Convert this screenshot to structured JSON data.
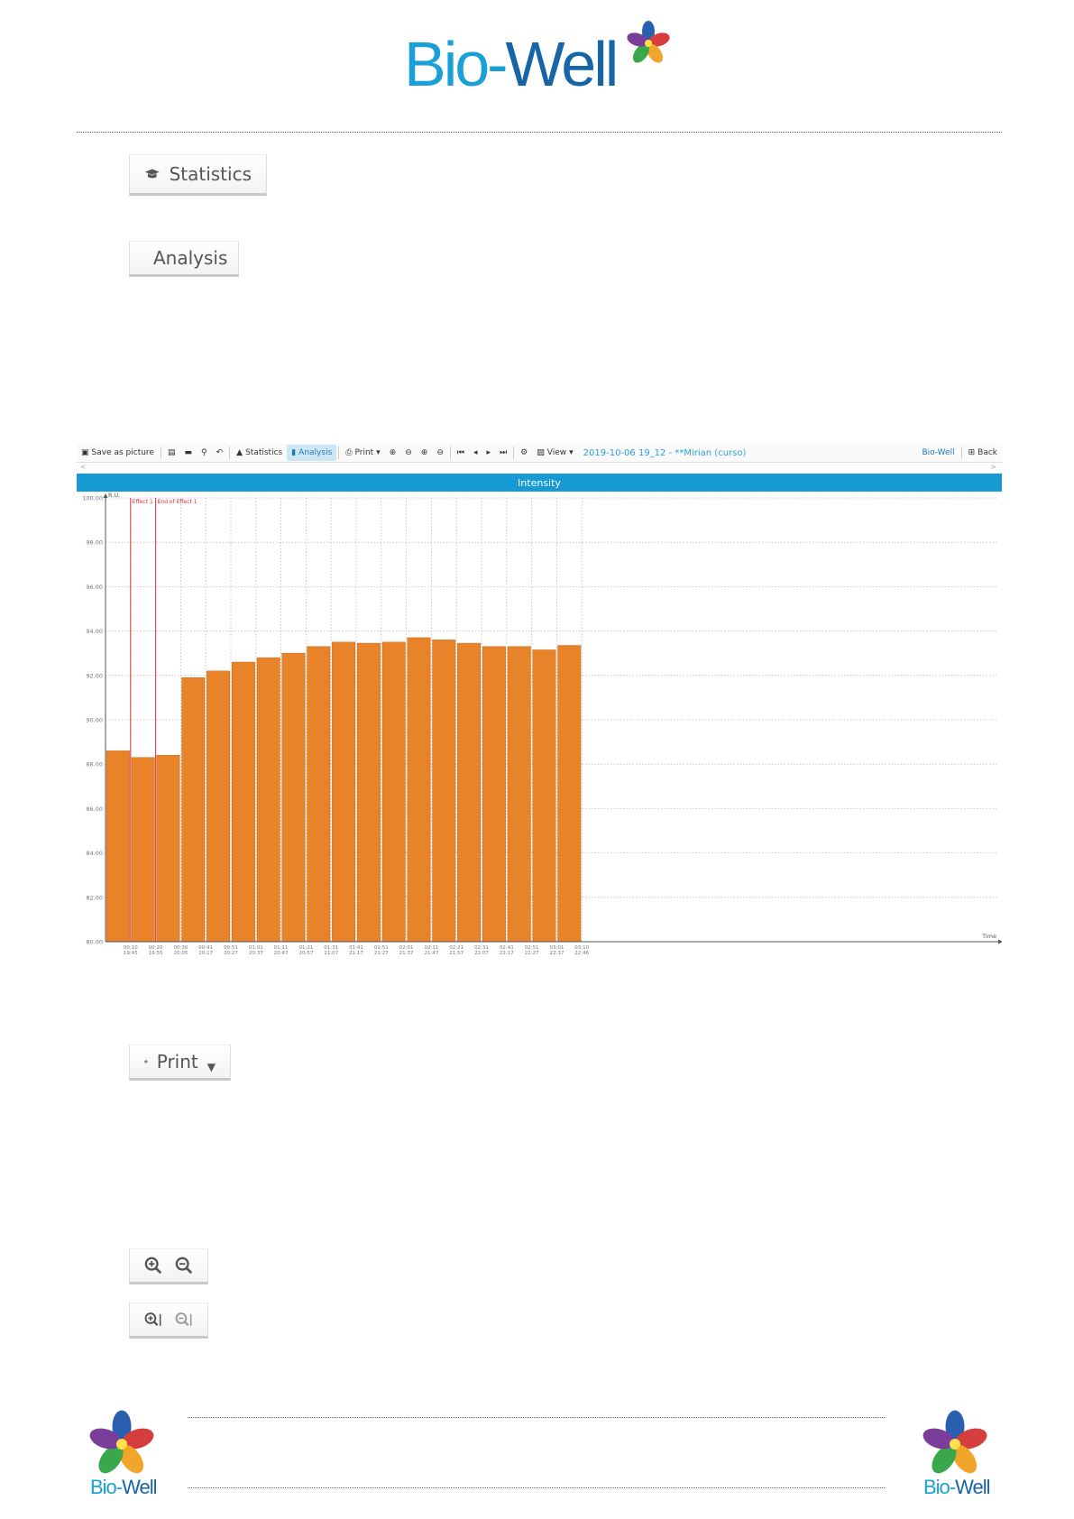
{
  "header": {
    "logo_bio": "Bio-",
    "logo_well": "Well"
  },
  "snippets": {
    "statistics_label": "Statistics",
    "analysis_label": "Analysis",
    "print_label": "Print"
  },
  "toolbar": {
    "save_as_picture": "Save as picture",
    "statistics": "Statistics",
    "analysis": "Analysis",
    "print": "Print",
    "view": "View",
    "session_title": "2019-10-06 19_12 - **Mirian (curso)",
    "brand": "Bio-Well",
    "back": "Back",
    "scroll_left": "<",
    "scroll_right": ">"
  },
  "chart_header": "Intensity",
  "chart_data": {
    "type": "bar",
    "title": "Intensity",
    "ylabel": "R.U.",
    "xlabel": "Time",
    "ylim": [
      80,
      100
    ],
    "yticks": [
      "80.00",
      "82.00",
      "84.00",
      "86.00",
      "88.00",
      "90.00",
      "92.00",
      "94.00",
      "96.00",
      "98.00",
      "100.00"
    ],
    "categories": [
      [
        "00:10",
        "19:45"
      ],
      [
        "00:20",
        "19:55"
      ],
      [
        "00:30",
        "20:05"
      ],
      [
        "00:41",
        "20:17"
      ],
      [
        "00:51",
        "20:27"
      ],
      [
        "01:01",
        "20:37"
      ],
      [
        "01:11",
        "20:47"
      ],
      [
        "01:21",
        "20:57"
      ],
      [
        "01:31",
        "21:07"
      ],
      [
        "01:41",
        "21:17"
      ],
      [
        "01:51",
        "21:27"
      ],
      [
        "02:01",
        "21:37"
      ],
      [
        "02:11",
        "21:47"
      ],
      [
        "02:21",
        "21:57"
      ],
      [
        "02:31",
        "22:07"
      ],
      [
        "02:41",
        "22:17"
      ],
      [
        "02:51",
        "22:27"
      ],
      [
        "03:01",
        "22:37"
      ],
      [
        "03:10",
        "22:46"
      ]
    ],
    "values": [
      88.6,
      88.3,
      88.4,
      91.9,
      92.2,
      92.6,
      92.8,
      93.0,
      93.3,
      93.5,
      93.45,
      93.5,
      93.7,
      93.6,
      93.45,
      93.3,
      93.3,
      93.15,
      93.35
    ],
    "bar_color": "#e8832a",
    "markers": [
      {
        "label": "Effect 1",
        "after_index": 0
      },
      {
        "label": "End of Effect 1",
        "after_index": 1
      }
    ],
    "grid": true
  },
  "colors": {
    "accent": "#1799d4",
    "bar": "#e8832a",
    "marker": "#d9303a"
  },
  "footer": {
    "left_bio": "Bio-",
    "left_well": "Well",
    "right_bio": "Bio-",
    "right_well": "Well"
  },
  "icons": [
    "graduation-cap-icon",
    "bar-chart-icon",
    "printer-icon",
    "zoom-in-icon",
    "zoom-out-icon",
    "zoom-in-vertical-icon",
    "zoom-out-vertical-icon",
    "flower-logo-icon"
  ]
}
